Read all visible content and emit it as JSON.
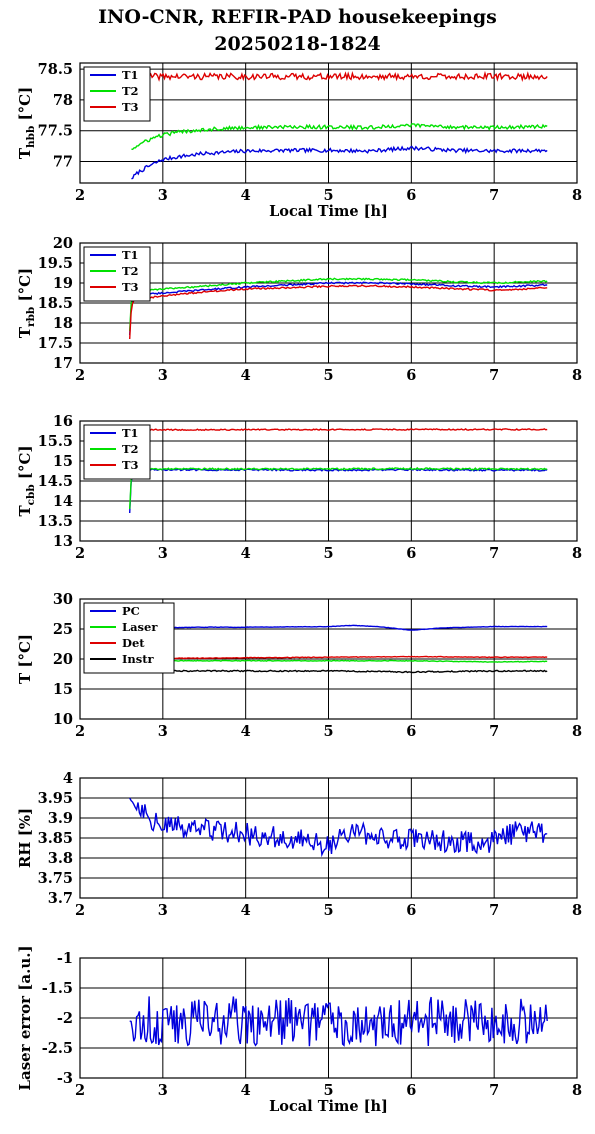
{
  "title": {
    "line1": "INO-CNR, REFIR-PAD housekeepings",
    "line2": "20250218-1824"
  },
  "colors": {
    "blue": "#0000dd",
    "green": "#00e000",
    "red": "#dd0000",
    "black": "#000000"
  },
  "chart_data": [
    {
      "type": "line",
      "ylabel_main": "T",
      "ylabel_sub": "hbb",
      "ylabel_unit": "[°C]",
      "xlabel": "Local Time [h]",
      "xlim": [
        2,
        8
      ],
      "ylim": [
        76.65,
        78.6
      ],
      "xticks": [
        "2",
        "3",
        "4",
        "5",
        "6",
        "7",
        "8"
      ],
      "yticks": [
        77,
        77.5,
        78,
        78.5
      ],
      "ytick_labels": [
        "77",
        "77.5",
        "78",
        "78.5"
      ],
      "grid": true,
      "legend": "top-left",
      "series": [
        {
          "name": "T1",
          "color": "#0000dd",
          "x": [
            2.62,
            2.7,
            2.8,
            2.9,
            3.0,
            3.2,
            3.5,
            4.0,
            4.5,
            5.0,
            5.5,
            6.0,
            6.5,
            7.0,
            7.64
          ],
          "y": [
            76.72,
            76.82,
            76.9,
            76.97,
            77.03,
            77.08,
            77.13,
            77.17,
            77.18,
            77.18,
            77.17,
            77.22,
            77.18,
            77.17,
            77.18
          ],
          "noise": 0.03
        },
        {
          "name": "T2",
          "color": "#00e000",
          "x": [
            2.62,
            2.7,
            2.8,
            2.9,
            3.0,
            3.2,
            3.5,
            4.0,
            4.5,
            5.0,
            5.5,
            6.0,
            6.5,
            7.0,
            7.64
          ],
          "y": [
            77.2,
            77.26,
            77.33,
            77.39,
            77.43,
            77.48,
            77.52,
            77.55,
            77.56,
            77.56,
            77.55,
            77.59,
            77.56,
            77.55,
            77.57
          ],
          "noise": 0.03
        },
        {
          "name": "T3",
          "color": "#dd0000",
          "x": [
            2.62,
            7.64
          ],
          "y": [
            78.38,
            78.38
          ],
          "noise": 0.05
        }
      ]
    },
    {
      "type": "line",
      "ylabel_main": "T",
      "ylabel_sub": "rbb",
      "ylabel_unit": "[°C]",
      "xlabel": "",
      "xlim": [
        2,
        8
      ],
      "ylim": [
        17,
        20
      ],
      "xticks": [
        "2",
        "3",
        "4",
        "5",
        "6",
        "7",
        "8"
      ],
      "yticks": [
        17,
        17.5,
        18,
        18.5,
        19,
        19.5,
        20
      ],
      "ytick_labels": [
        "17",
        "17.5",
        "18",
        "18.5",
        "19",
        "19.5",
        "20"
      ],
      "grid": true,
      "legend": "top-left",
      "series": [
        {
          "name": "T1",
          "color": "#0000dd",
          "x": [
            2.6,
            2.62,
            2.66,
            2.8,
            3.0,
            3.5,
            4.0,
            4.5,
            5.0,
            5.5,
            6.0,
            6.5,
            7.0,
            7.64
          ],
          "y": [
            17.7,
            18.5,
            18.7,
            18.72,
            18.75,
            18.83,
            18.9,
            18.95,
            19.0,
            19.0,
            18.98,
            18.93,
            18.9,
            18.95
          ],
          "noise": 0.02
        },
        {
          "name": "T2",
          "color": "#00e000",
          "x": [
            2.6,
            2.62,
            2.66,
            2.8,
            3.0,
            3.5,
            4.0,
            4.5,
            5.0,
            5.5,
            6.0,
            6.5,
            7.0,
            7.64
          ],
          "y": [
            17.8,
            18.6,
            18.8,
            18.82,
            18.85,
            18.92,
            19.0,
            19.05,
            19.1,
            19.1,
            19.08,
            19.03,
            19.0,
            19.05
          ],
          "noise": 0.02
        },
        {
          "name": "T3",
          "color": "#dd0000",
          "x": [
            2.6,
            2.62,
            2.66,
            2.8,
            3.0,
            3.5,
            4.0,
            4.5,
            5.0,
            5.5,
            6.0,
            6.5,
            7.0,
            7.64
          ],
          "y": [
            17.6,
            18.4,
            18.6,
            18.62,
            18.68,
            18.78,
            18.85,
            18.88,
            18.92,
            18.93,
            18.9,
            18.86,
            18.82,
            18.88
          ],
          "noise": 0.02
        }
      ]
    },
    {
      "type": "line",
      "ylabel_main": "T",
      "ylabel_sub": "cbb",
      "ylabel_unit": "[°C]",
      "xlabel": "",
      "xlim": [
        2,
        8
      ],
      "ylim": [
        13,
        16
      ],
      "xticks": [
        "2",
        "3",
        "4",
        "5",
        "6",
        "7",
        "8"
      ],
      "yticks": [
        13,
        13.5,
        14,
        14.5,
        15,
        15.5,
        16
      ],
      "ytick_labels": [
        "13",
        "13.5",
        "14",
        "14.5",
        "15",
        "15.5",
        "16"
      ],
      "grid": true,
      "legend": "top-left",
      "series": [
        {
          "name": "T1",
          "color": "#0000dd",
          "x": [
            2.6,
            2.62,
            2.66,
            2.8,
            3.0,
            4.0,
            5.0,
            6.0,
            7.0,
            7.64
          ],
          "y": [
            13.7,
            14.6,
            14.78,
            14.78,
            14.78,
            14.78,
            14.77,
            14.78,
            14.77,
            14.77
          ],
          "noise": 0.02
        },
        {
          "name": "T2",
          "color": "#00e000",
          "x": [
            2.6,
            2.62,
            2.66,
            2.8,
            3.0,
            4.0,
            5.0,
            6.0,
            7.0,
            7.64
          ],
          "y": [
            13.8,
            14.65,
            14.8,
            14.8,
            14.8,
            14.8,
            14.8,
            14.81,
            14.8,
            14.8
          ],
          "noise": 0.02
        },
        {
          "name": "T3",
          "color": "#dd0000",
          "x": [
            2.75,
            7.64
          ],
          "y": [
            15.78,
            15.79
          ],
          "noise": 0.015
        }
      ]
    },
    {
      "type": "line",
      "ylabel_main": "T",
      "ylabel_sub": "",
      "ylabel_unit": "[°C]",
      "xlabel": "",
      "xlim": [
        2,
        8
      ],
      "ylim": [
        10,
        30
      ],
      "xticks": [
        "2",
        "3",
        "4",
        "5",
        "6",
        "7",
        "8"
      ],
      "yticks": [
        10,
        15,
        20,
        25,
        30
      ],
      "ytick_labels": [
        "10",
        "15",
        "20",
        "25",
        "30"
      ],
      "grid": true,
      "legend": "top-left",
      "series": [
        {
          "name": "PC",
          "color": "#0000dd",
          "x": [
            3.0,
            3.5,
            4.0,
            5.0,
            5.3,
            5.6,
            6.0,
            6.4,
            7.0,
            7.64
          ],
          "y": [
            25.2,
            25.3,
            25.3,
            25.4,
            25.6,
            25.4,
            24.8,
            25.2,
            25.4,
            25.4
          ],
          "noise": 0.03
        },
        {
          "name": "Laser",
          "color": "#00e000",
          "x": [
            3.0,
            4.0,
            5.0,
            6.0,
            7.0,
            7.64
          ],
          "y": [
            19.7,
            19.7,
            19.7,
            19.7,
            19.5,
            19.6
          ],
          "noise": 0.05
        },
        {
          "name": "Det",
          "color": "#dd0000",
          "x": [
            3.0,
            4.0,
            5.0,
            6.0,
            7.0,
            7.64
          ],
          "y": [
            20.1,
            20.2,
            20.3,
            20.4,
            20.3,
            20.3
          ],
          "noise": 0.05
        },
        {
          "name": "Instr",
          "color": "#000000",
          "x": [
            3.0,
            4.0,
            5.0,
            5.7,
            6.0,
            6.3,
            7.0,
            7.64
          ],
          "y": [
            18.0,
            18.0,
            18.0,
            17.9,
            17.8,
            17.9,
            18.0,
            18.0
          ],
          "noise": 0.1
        }
      ]
    },
    {
      "type": "line",
      "ylabel_main": "RH [%]",
      "ylabel_sub": "",
      "ylabel_unit": "",
      "xlabel": "",
      "xlim": [
        2,
        8
      ],
      "ylim": [
        3.7,
        4.0
      ],
      "xticks": [
        "2",
        "3",
        "4",
        "5",
        "6",
        "7",
        "8"
      ],
      "yticks": [
        3.7,
        3.75,
        3.8,
        3.85,
        3.9,
        3.95,
        4.0
      ],
      "ytick_labels": [
        "3.7",
        "3.75",
        "3.8",
        "3.85",
        "3.9",
        "3.95",
        "4"
      ],
      "grid": true,
      "legend": "none",
      "series": [
        {
          "name": "",
          "color": "#0000dd",
          "x": [
            2.6,
            2.7,
            2.8,
            2.9,
            3.0,
            3.5,
            4.0,
            4.5,
            5.0,
            5.3,
            5.6,
            6.0,
            6.5,
            7.0,
            7.3,
            7.64
          ],
          "y": [
            3.95,
            3.93,
            3.92,
            3.89,
            3.88,
            3.87,
            3.86,
            3.85,
            3.83,
            3.87,
            3.85,
            3.85,
            3.84,
            3.84,
            3.87,
            3.86
          ],
          "noise": 0.028
        }
      ]
    },
    {
      "type": "line",
      "ylabel_main": "Laser error [a.u.]",
      "ylabel_sub": "",
      "ylabel_unit": "",
      "xlabel": "Local Time [h]",
      "xlim": [
        2,
        8
      ],
      "ylim": [
        -3,
        -1
      ],
      "xticks": [
        "2",
        "3",
        "4",
        "5",
        "6",
        "7",
        "8"
      ],
      "yticks": [
        -3,
        -2.5,
        -2,
        -1.5,
        -1
      ],
      "ytick_labels": [
        "-3",
        "-2.5",
        "-2",
        "-1.5",
        "-1"
      ],
      "grid": true,
      "legend": "none",
      "series": [
        {
          "name": "",
          "color": "#0000dd",
          "x": [
            2.6,
            7.64
          ],
          "y": [
            -2.05,
            -2.05
          ],
          "noise": 0.42
        }
      ]
    }
  ]
}
